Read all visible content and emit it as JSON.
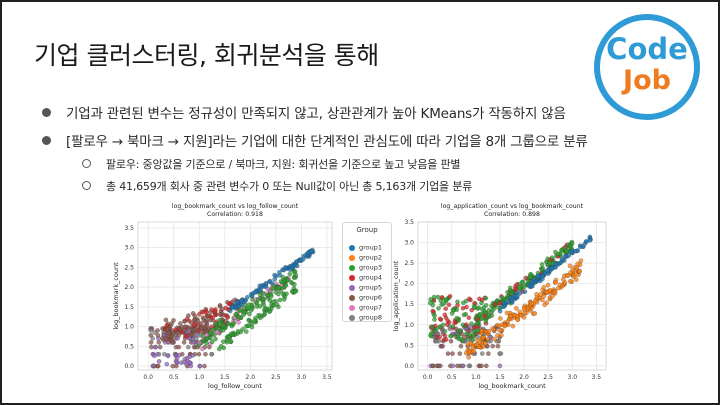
{
  "slide": {
    "title": "기업 클러스터링, 회귀분석을 통해",
    "logo": {
      "line1": "Code",
      "line2": "Job",
      "colors": {
        "ring": "#2e9ad6",
        "code": "#2e9ad6",
        "job": "#f07a1e"
      }
    },
    "bullets": [
      "기업과 관련된 변수는 정규성이 만족되지 않고, 상관관계가 높아 KMeans가 작동하지 않음",
      "[팔로우 → 북마크 → 지원]라는 기업에 대한 단계적인 관심도에 따라 기업을 8개 그룹으로 분류"
    ],
    "sub_bullets": [
      "팔로우: 중앙값을 기준으로 / 북마크, 지원: 회귀선을 기준으로 높고 낮음을 판별",
      "총 41,659개 회사 중 관련 변수가 0 또는 Null값이 아닌 총 5,163개 기업을 분류"
    ]
  },
  "legend": {
    "title": "Group",
    "items": [
      {
        "label": "group1",
        "color": "#1f77b4"
      },
      {
        "label": "group2",
        "color": "#ff7f0e"
      },
      {
        "label": "group3",
        "color": "#2ca02c"
      },
      {
        "label": "group4",
        "color": "#d62728"
      },
      {
        "label": "group5",
        "color": "#9467bd"
      },
      {
        "label": "group6",
        "color": "#8c564b"
      },
      {
        "label": "group7",
        "color": "#e377c2"
      },
      {
        "label": "group8",
        "color": "#7f7f7f"
      }
    ]
  },
  "chart_data": [
    {
      "type": "scatter",
      "title": "log_bookmark_count vs log_follow_count",
      "subtitle": "Correlation: 0.918",
      "xlabel": "log_follow_count",
      "ylabel": "log_bookmark_count",
      "xlim": [
        -0.2,
        3.6
      ],
      "ylim": [
        -0.1,
        3.65
      ],
      "xticks": [
        "0.0",
        "0.5",
        "1.0",
        "1.5",
        "2.0",
        "2.5",
        "3.0",
        "3.5"
      ],
      "yticks": [
        "0.0",
        "0.5",
        "1.0",
        "1.5",
        "2.0",
        "2.5",
        "3.0",
        "3.5"
      ],
      "grid": true
    },
    {
      "type": "scatter",
      "title": "log_application_count vs log_bookmark_count",
      "subtitle": "Correlation: 0.898",
      "xlabel": "log_bookmark_count",
      "ylabel": "log_application_count",
      "xlim": [
        -0.2,
        3.7
      ],
      "ylim": [
        -0.1,
        3.5
      ],
      "xticks": [
        "0.0",
        "0.5",
        "1.0",
        "1.5",
        "2.0",
        "2.5",
        "3.0",
        "3.5"
      ],
      "yticks": [
        "0.0",
        "0.5",
        "1.0",
        "1.5",
        "2.0",
        "2.5",
        "3.0",
        "3.5"
      ],
      "grid": true
    }
  ]
}
